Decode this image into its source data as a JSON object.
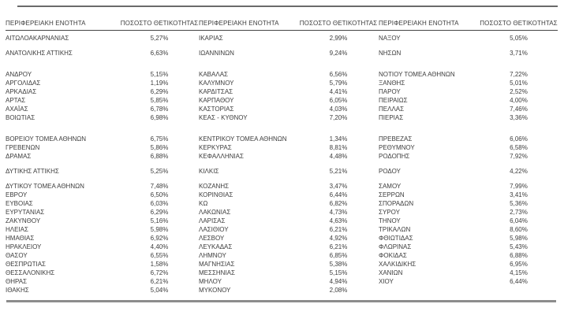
{
  "table": {
    "header": {
      "region_label": "ΠΕΡΙΦΕΡΕΙΑΚΗ ΕΝΟΤΗΤΑ",
      "pct_label": "ΠΟΣΟΣΤΟ ΘΕΤΙΚΟΤΗΤΑΣ"
    },
    "rows": [
      {
        "type": "data",
        "cells": [
          [
            "ΑΙΤΩΛΟΑΚΑΡΝΑΝΙΑΣ",
            "5,27%"
          ],
          [
            "ΙΚΑΡΙΑΣ",
            "2,99%"
          ],
          [
            "ΝΑΞΟΥ",
            "5,05%"
          ]
        ]
      },
      {
        "type": "blank"
      },
      {
        "type": "data",
        "cells": [
          [
            "ΑΝΑΤΟΛΙΚΗΣ ΑΤΤΙΚΗΣ",
            "6,63%"
          ],
          [
            "ΙΩΑΝΝΙΝΩΝ",
            "9,24%"
          ],
          [
            "ΝΗΣΩΝ",
            "3,71%"
          ]
        ]
      },
      {
        "type": "blank"
      },
      {
        "type": "blank"
      },
      {
        "type": "data",
        "cells": [
          [
            "ΑΝΔΡΟΥ",
            "5,15%"
          ],
          [
            "ΚΑΒΑΛΑΣ",
            "6,56%"
          ],
          [
            "ΝΟΤΙΟΥ ΤΟΜΕΑ ΑΘΗΝΩΝ",
            "7,22%"
          ]
        ]
      },
      {
        "type": "data",
        "cells": [
          [
            "ΑΡΓΟΛΙΔΑΣ",
            "1,19%"
          ],
          [
            "ΚΑΛΥΜΝΟΥ",
            "5,79%"
          ],
          [
            "ΞΑΝΘΗΣ",
            "5,01%"
          ]
        ]
      },
      {
        "type": "data",
        "cells": [
          [
            "ΑΡΚΑΔΙΑΣ",
            "6,29%"
          ],
          [
            "ΚΑΡΔΙΤΣΑΣ",
            "4,41%"
          ],
          [
            "ΠΑΡΟΥ",
            "2,52%"
          ]
        ]
      },
      {
        "type": "data",
        "cells": [
          [
            "ΑΡΤΑΣ",
            "5,85%"
          ],
          [
            "ΚΑΡΠΑΘΟΥ",
            "6,05%"
          ],
          [
            "ΠΕΙΡΑΙΩΣ",
            "4,00%"
          ]
        ]
      },
      {
        "type": "data",
        "cells": [
          [
            "ΑΧΑΪΑΣ",
            "6,78%"
          ],
          [
            "ΚΑΣΤΟΡΙΑΣ",
            "4,03%"
          ],
          [
            "ΠΕΛΛΑΣ",
            "7,46%"
          ]
        ]
      },
      {
        "type": "data",
        "cells": [
          [
            "ΒΟΙΩΤΙΑΣ",
            "6,98%"
          ],
          [
            "ΚΕΑΣ - ΚΥΘΝΟΥ",
            "7,20%"
          ],
          [
            "ΠΙΕΡΙΑΣ",
            "3,36%"
          ]
        ]
      },
      {
        "type": "blank"
      },
      {
        "type": "blank"
      },
      {
        "type": "data",
        "cells": [
          [
            "ΒΟΡΕΙΟΥ ΤΟΜΕΑ ΑΘΗΝΩΝ",
            "6,75%"
          ],
          [
            "ΚΕΝΤΡΙΚΟΥ ΤΟΜΕΑ ΑΘΗΝΩΝ",
            "1,34%"
          ],
          [
            "ΠΡΕΒΕΖΑΣ",
            "6,06%"
          ]
        ]
      },
      {
        "type": "data",
        "cells": [
          [
            "ΓΡΕΒΕΝΩΝ",
            "5,86%"
          ],
          [
            "ΚΕΡΚΥΡΑΣ",
            "8,81%"
          ],
          [
            "ΡΕΘΥΜΝΟΥ",
            "6,58%"
          ]
        ]
      },
      {
        "type": "data",
        "cells": [
          [
            "ΔΡΑΜΑΣ",
            "6,88%"
          ],
          [
            "ΚΕΦΑΛΛΗΝΙΑΣ",
            "4,48%"
          ],
          [
            "ΡΟΔΟΠΗΣ",
            "7,92%"
          ]
        ]
      },
      {
        "type": "blank"
      },
      {
        "type": "data",
        "cells": [
          [
            "ΔΥΤΙΚΗΣ ΑΤΤΙΚΗΣ",
            "5,25%"
          ],
          [
            "ΚΙΛΚΙΣ",
            "5,21%"
          ],
          [
            "ΡΟΔΟΥ",
            "4,22%"
          ]
        ]
      },
      {
        "type": "blank"
      },
      {
        "type": "data",
        "cells": [
          [
            "ΔΥΤΙΚΟΥ ΤΟΜΕΑ ΑΘΗΝΩΝ",
            "7,48%"
          ],
          [
            "ΚΟΖΑΝΗΣ",
            "3,47%"
          ],
          [
            "ΣΑΜΟΥ",
            "7,99%"
          ]
        ]
      },
      {
        "type": "data",
        "cells": [
          [
            "ΕΒΡΟΥ",
            "6,50%"
          ],
          [
            "ΚΟΡΙΝΘΙΑΣ",
            "6,44%"
          ],
          [
            "ΣΕΡΡΩΝ",
            "3,41%"
          ]
        ]
      },
      {
        "type": "data",
        "cells": [
          [
            "ΕΥΒΟΙΑΣ",
            "6,03%"
          ],
          [
            "ΚΩ",
            "6,82%"
          ],
          [
            "ΣΠΟΡΑΔΩΝ",
            "5,36%"
          ]
        ]
      },
      {
        "type": "data",
        "cells": [
          [
            "ΕΥΡΥΤΑΝΙΑΣ",
            "6,29%"
          ],
          [
            "ΛΑΚΩΝΙΑΣ",
            "4,73%"
          ],
          [
            "ΣΥΡΟΥ",
            "2,73%"
          ]
        ]
      },
      {
        "type": "data",
        "cells": [
          [
            "ΖΑΚΥΝΘΟΥ",
            "5,16%"
          ],
          [
            "ΛΑΡΙΣΑΣ",
            "4,63%"
          ],
          [
            "ΤΗΝΟΥ",
            "6,04%"
          ]
        ]
      },
      {
        "type": "data",
        "cells": [
          [
            "ΗΛΕΙΑΣ",
            "5,98%"
          ],
          [
            "ΛΑΣΙΘΙΟΥ",
            "6,21%"
          ],
          [
            "ΤΡΙΚΑΛΩΝ",
            "8,60%"
          ]
        ]
      },
      {
        "type": "data",
        "cells": [
          [
            "ΗΜΑΘΙΑΣ",
            "6,92%"
          ],
          [
            "ΛΕΣΒΟΥ",
            "4,92%"
          ],
          [
            "ΦΘΙΩΤΙΔΑΣ",
            "5,98%"
          ]
        ]
      },
      {
        "type": "data",
        "cells": [
          [
            "ΗΡΑΚΛΕΙΟΥ",
            "4,40%"
          ],
          [
            "ΛΕΥΚΑΔΑΣ",
            "6,21%"
          ],
          [
            "ΦΛΩΡΙΝΑΣ",
            "5,43%"
          ]
        ]
      },
      {
        "type": "data",
        "cells": [
          [
            "ΘΑΣΟΥ",
            "6,55%"
          ],
          [
            "ΛΗΜΝΟΥ",
            "6,85%"
          ],
          [
            "ΦΟΚΙΔΑΣ",
            "6,88%"
          ]
        ]
      },
      {
        "type": "data",
        "cells": [
          [
            "ΘΕΣΠΡΩΤΙΑΣ",
            "1,58%"
          ],
          [
            "ΜΑΓΝΗΣΙΑΣ",
            "5,38%"
          ],
          [
            "ΧΑΛΚΙΔΙΚΗΣ",
            "6,95%"
          ]
        ]
      },
      {
        "type": "data",
        "cells": [
          [
            "ΘΕΣΣΑΛΟΝΙΚΗΣ",
            "6,72%"
          ],
          [
            "ΜΕΣΣΗΝΙΑΣ",
            "5,15%"
          ],
          [
            "ΧΑΝΙΩΝ",
            "4,15%"
          ]
        ]
      },
      {
        "type": "data",
        "cells": [
          [
            "ΘΗΡΑΣ",
            "6,21%"
          ],
          [
            "ΜΗΛΟΥ",
            "4,94%"
          ],
          [
            "ΧΙΟΥ",
            "6,44%"
          ]
        ]
      },
      {
        "type": "data",
        "cells": [
          [
            "ΙΘΑΚΗΣ",
            "5,04%"
          ],
          [
            "ΜΥΚΟΝΟΥ",
            "2,08%"
          ],
          [
            "",
            ""
          ]
        ]
      }
    ]
  }
}
